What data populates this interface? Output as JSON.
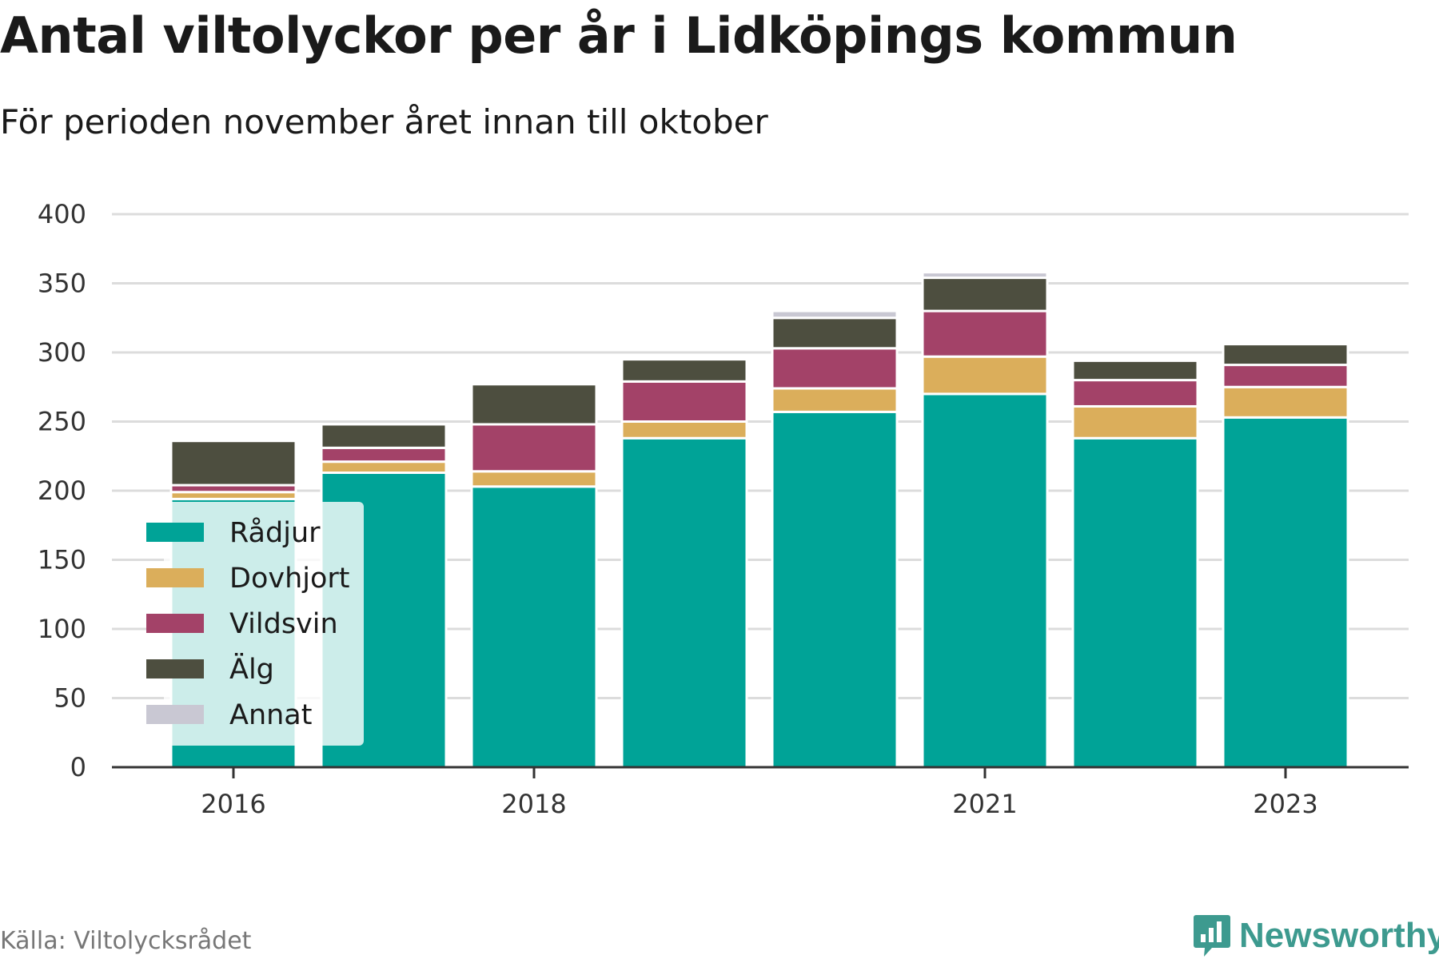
{
  "title": "Antal viltolyckor per år i Lidköpings kommun",
  "subtitle": "För perioden november året innan till oktober",
  "source": "Källa: Viltolycksrådet",
  "brand": "Newsworthy",
  "colors": {
    "Rådjur": "#00a397",
    "Dovhjort": "#dbae5b",
    "Vildsvin": "#a34268",
    "Älg": "#4d4e3f",
    "Annat": "#c9c8d3"
  },
  "chart_data": {
    "type": "bar",
    "stacked": true,
    "categories": [
      "2016",
      "2017",
      "2018",
      "2019",
      "2020",
      "2021",
      "2022",
      "2023"
    ],
    "x_tick_labels": [
      "2016",
      "2018",
      "2021",
      "2023"
    ],
    "y_ticks": [
      0,
      50,
      100,
      150,
      200,
      250,
      300,
      350,
      400
    ],
    "ylim": [
      0,
      400
    ],
    "grid": true,
    "legend_position": "bottom-left",
    "series": [
      {
        "name": "Rådjur",
        "values": [
          194,
          213,
          203,
          238,
          257,
          270,
          238,
          253
        ]
      },
      {
        "name": "Dovhjort",
        "values": [
          5,
          8,
          11,
          12,
          17,
          27,
          23,
          22
        ]
      },
      {
        "name": "Vildsvin",
        "values": [
          5,
          10,
          34,
          29,
          29,
          33,
          19,
          16
        ]
      },
      {
        "name": "Älg",
        "values": [
          32,
          17,
          29,
          16,
          22,
          24,
          14,
          15
        ]
      },
      {
        "name": "Annat",
        "values": [
          0,
          0,
          0,
          0,
          5,
          4,
          0,
          0
        ]
      }
    ]
  }
}
